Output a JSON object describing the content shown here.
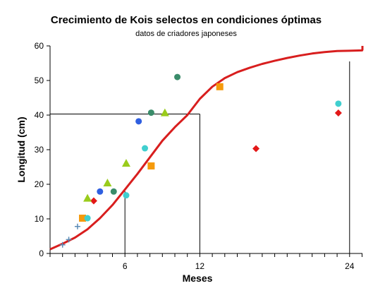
{
  "chart_data": {
    "type": "scatter",
    "title": "Crecimiento de Kois selectos en condiciones óptimas",
    "subtitle": "datos de criadores japoneses",
    "xlabel": "Meses",
    "ylabel": "Longitud (cm)",
    "ylim": [
      0,
      60
    ],
    "y_ticks": [
      0,
      10,
      20,
      30,
      40,
      50,
      60
    ],
    "x_tick_labels": [
      {
        "label": "6",
        "value": 6
      },
      {
        "label": "12",
        "value": 12
      },
      {
        "label": "24",
        "value": 24
      }
    ],
    "grid": false,
    "legend": "none",
    "growth_curve": {
      "color": "#d81e1e",
      "points": [
        [
          0,
          1.2
        ],
        [
          1,
          2.8
        ],
        [
          2,
          4.6
        ],
        [
          3,
          7.0
        ],
        [
          4,
          10.2
        ],
        [
          5,
          14.0
        ],
        [
          6,
          18.5
        ],
        [
          7,
          23.0
        ],
        [
          8,
          27.8
        ],
        [
          9,
          32.6
        ],
        [
          10,
          36.5
        ],
        [
          11,
          40.0
        ],
        [
          12,
          44.7
        ],
        [
          13,
          48.2
        ],
        [
          14,
          50.7
        ],
        [
          15,
          52.4
        ],
        [
          16,
          53.7
        ],
        [
          17,
          54.8
        ],
        [
          18,
          55.7
        ],
        [
          19,
          56.5
        ],
        [
          20,
          57.2
        ],
        [
          21,
          57.8
        ],
        [
          22,
          58.2
        ],
        [
          23,
          58.5
        ],
        [
          24,
          58.6
        ],
        [
          25,
          58.7
        ],
        [
          26,
          58.9
        ],
        [
          27,
          59.0
        ],
        [
          28,
          59.2
        ],
        [
          29,
          59.4
        ],
        [
          30,
          59.6
        ],
        [
          31,
          59.8
        ],
        [
          32,
          60.0
        ]
      ]
    },
    "reference_lines": [
      {
        "x": 6,
        "y": 18
      },
      {
        "x": 12,
        "y": 40.3
      },
      {
        "x": 24,
        "y": 55.5
      }
    ],
    "series": [
      {
        "marker": "plus",
        "color": "#5b8bb5",
        "points": [
          [
            1.0,
            2.5
          ],
          [
            1.5,
            4.0
          ],
          [
            2.2,
            7.8
          ]
        ]
      },
      {
        "marker": "square",
        "color": "#f59a0c",
        "points": [
          [
            2.6,
            10.2
          ],
          [
            8.1,
            25.3
          ],
          [
            13.6,
            48.2
          ]
        ]
      },
      {
        "marker": "circle",
        "color": "#40cfcf",
        "points": [
          [
            3.0,
            10.2
          ],
          [
            6.1,
            16.8
          ],
          [
            7.6,
            30.4
          ],
          [
            23.1,
            43.3
          ]
        ]
      },
      {
        "marker": "diamond",
        "color": "#e31818",
        "points": [
          [
            3.5,
            15.2
          ],
          [
            16.5,
            30.3
          ],
          [
            23.1,
            40.6
          ]
        ]
      },
      {
        "marker": "triangle",
        "color": "#9acc1c",
        "points": [
          [
            3.0,
            16.0
          ],
          [
            4.6,
            20.4
          ],
          [
            6.1,
            26.1
          ],
          [
            9.2,
            40.7
          ]
        ]
      },
      {
        "marker": "circle",
        "color": "#2f5fe0",
        "points": [
          [
            4.0,
            17.9
          ],
          [
            7.1,
            38.2
          ]
        ]
      },
      {
        "marker": "circle",
        "color": "#3a8c6a",
        "points": [
          [
            5.1,
            17.9
          ],
          [
            8.1,
            40.7
          ],
          [
            10.2,
            51.0
          ]
        ]
      }
    ]
  }
}
